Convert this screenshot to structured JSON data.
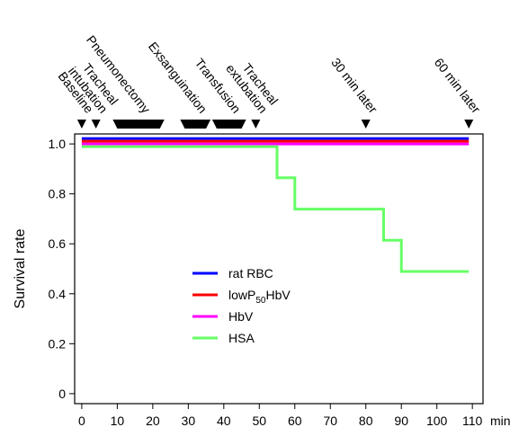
{
  "chart_data": {
    "type": "line",
    "step": true,
    "xlabel": "",
    "x_unit": "min",
    "ylabel": "Survival rate",
    "xlim": [
      0,
      110
    ],
    "ylim": [
      0,
      1.0
    ],
    "x_ticks": [
      0,
      10,
      20,
      30,
      40,
      50,
      60,
      70,
      80,
      90,
      100,
      110
    ],
    "y_ticks": [
      0,
      0.2,
      0.4,
      0.6,
      0.8,
      1.0
    ],
    "y_tick_labels": [
      "0",
      "0.2",
      "0.4",
      "0.6",
      "0.8",
      "1.0"
    ],
    "grid": false,
    "legend_position": "center",
    "series": [
      {
        "name": "rat RBC",
        "color": "#0000ff",
        "points": [
          [
            0,
            1.0
          ],
          [
            109,
            1.0
          ]
        ]
      },
      {
        "name": "lowP50HbV",
        "name_parts": [
          "lowP",
          "50",
          "HbV"
        ],
        "color": "#ff0000",
        "points": [
          [
            0,
            1.0
          ],
          [
            109,
            1.0
          ]
        ]
      },
      {
        "name": "HbV",
        "color": "#ff00ff",
        "points": [
          [
            0,
            1.0
          ],
          [
            109,
            1.0
          ]
        ]
      },
      {
        "name": "HSA",
        "color": "#66ff66",
        "points": [
          [
            0,
            1.0
          ],
          [
            55,
            1.0
          ],
          [
            55,
            0.875
          ],
          [
            60,
            0.875
          ],
          [
            60,
            0.75
          ],
          [
            85,
            0.75
          ],
          [
            85,
            0.625
          ],
          [
            90,
            0.625
          ],
          [
            90,
            0.5
          ],
          [
            109,
            0.5
          ]
        ]
      }
    ],
    "events": [
      {
        "lines": [
          "Baseline"
        ],
        "marker": "point",
        "at": 0
      },
      {
        "lines": [
          "Tracheal",
          "intubation"
        ],
        "marker": "point",
        "at": 4
      },
      {
        "lines": [
          "Pneumonectomy"
        ],
        "marker": "span",
        "from": 10,
        "to": 22
      },
      {
        "lines": [
          "Exsanguination"
        ],
        "marker": "span",
        "from": 29,
        "to": 35
      },
      {
        "lines": [
          "Transfusion"
        ],
        "marker": "span",
        "from": 38,
        "to": 45
      },
      {
        "lines": [
          "Tracheal",
          "extubation"
        ],
        "marker": "point",
        "at": 49
      },
      {
        "lines": [
          "30 min later"
        ],
        "marker": "point",
        "at": 80
      },
      {
        "lines": [
          "60 min later"
        ],
        "marker": "point",
        "at": 109
      }
    ]
  }
}
